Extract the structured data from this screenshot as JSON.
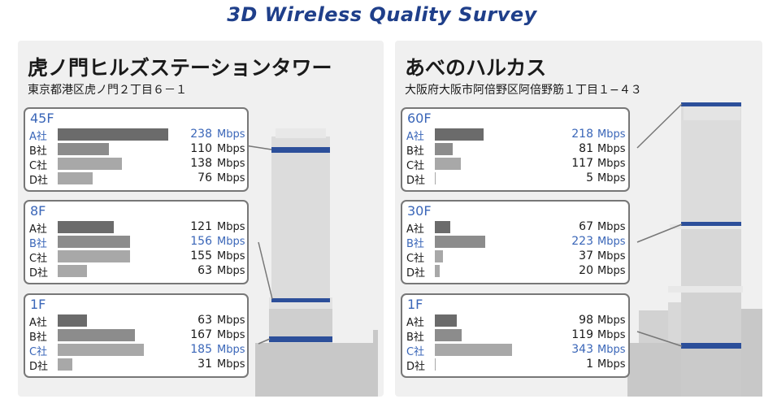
{
  "title": "3D Wireless Quality Survey",
  "colors": {
    "highlight": "#3a66b8",
    "bar_dark": "#6b6b6b",
    "bar_mid": "#8c8c8c",
    "bar_light": "#a8a8a8",
    "floor_band": "#2c4f9a",
    "panel_bg": "#f0f0f0"
  },
  "unit": "Mbps",
  "panels": [
    {
      "name": "虎ノ門ヒルズステーションタワー",
      "address": "東京都港区虎ノ門２丁目６－１",
      "scale_max": 238,
      "floors": [
        {
          "label": "45F",
          "rows": [
            {
              "carrier": "A社",
              "value": 238,
              "highlight": true
            },
            {
              "carrier": "B社",
              "value": 110,
              "highlight": false
            },
            {
              "carrier": "C社",
              "value": 138,
              "highlight": false
            },
            {
              "carrier": "D社",
              "value": 76,
              "highlight": false
            }
          ]
        },
        {
          "label": "8F",
          "rows": [
            {
              "carrier": "A社",
              "value": 121,
              "highlight": false
            },
            {
              "carrier": "B社",
              "value": 156,
              "highlight": true
            },
            {
              "carrier": "C社",
              "value": 155,
              "highlight": false
            },
            {
              "carrier": "D社",
              "value": 63,
              "highlight": false
            }
          ]
        },
        {
          "label": "1F",
          "rows": [
            {
              "carrier": "A社",
              "value": 63,
              "highlight": false
            },
            {
              "carrier": "B社",
              "value": 167,
              "highlight": false
            },
            {
              "carrier": "C社",
              "value": 185,
              "highlight": true
            },
            {
              "carrier": "D社",
              "value": 31,
              "highlight": false
            }
          ]
        }
      ]
    },
    {
      "name": "あべのハルカス",
      "address": "大阪府大阪市阿倍野区阿倍野筋１丁目１−４３",
      "scale_max": 343,
      "floors": [
        {
          "label": "60F",
          "rows": [
            {
              "carrier": "A社",
              "value": 218,
              "highlight": true
            },
            {
              "carrier": "B社",
              "value": 81,
              "highlight": false
            },
            {
              "carrier": "C社",
              "value": 117,
              "highlight": false
            },
            {
              "carrier": "D社",
              "value": 5,
              "highlight": false
            }
          ]
        },
        {
          "label": "30F",
          "rows": [
            {
              "carrier": "A社",
              "value": 67,
              "highlight": false
            },
            {
              "carrier": "B社",
              "value": 223,
              "highlight": true
            },
            {
              "carrier": "C社",
              "value": 37,
              "highlight": false
            },
            {
              "carrier": "D社",
              "value": 20,
              "highlight": false
            }
          ]
        },
        {
          "label": "1F",
          "rows": [
            {
              "carrier": "A社",
              "value": 98,
              "highlight": false
            },
            {
              "carrier": "B社",
              "value": 119,
              "highlight": false
            },
            {
              "carrier": "C社",
              "value": 343,
              "highlight": true
            },
            {
              "carrier": "D社",
              "value": 1,
              "highlight": false
            }
          ]
        }
      ]
    }
  ],
  "chart_data": [
    {
      "type": "bar",
      "title": "虎ノ門ヒルズステーションタワー",
      "subtitle": "東京都港区虎ノ門２丁目６－１",
      "categories": [
        "A社",
        "B社",
        "C社",
        "D社"
      ],
      "series": [
        {
          "name": "45F",
          "values": [
            238,
            110,
            138,
            76
          ]
        },
        {
          "name": "8F",
          "values": [
            121,
            156,
            155,
            63
          ]
        },
        {
          "name": "1F",
          "values": [
            63,
            167,
            185,
            31
          ]
        }
      ],
      "unit": "Mbps"
    },
    {
      "type": "bar",
      "title": "あべのハルカス",
      "subtitle": "大阪府大阪市阿倍野区阿倍野筋１丁目１−４３",
      "categories": [
        "A社",
        "B社",
        "C社",
        "D社"
      ],
      "series": [
        {
          "name": "60F",
          "values": [
            218,
            81,
            117,
            5
          ]
        },
        {
          "name": "30F",
          "values": [
            67,
            223,
            37,
            20
          ]
        },
        {
          "name": "1F",
          "values": [
            98,
            119,
            343,
            1
          ]
        }
      ],
      "unit": "Mbps"
    }
  ]
}
